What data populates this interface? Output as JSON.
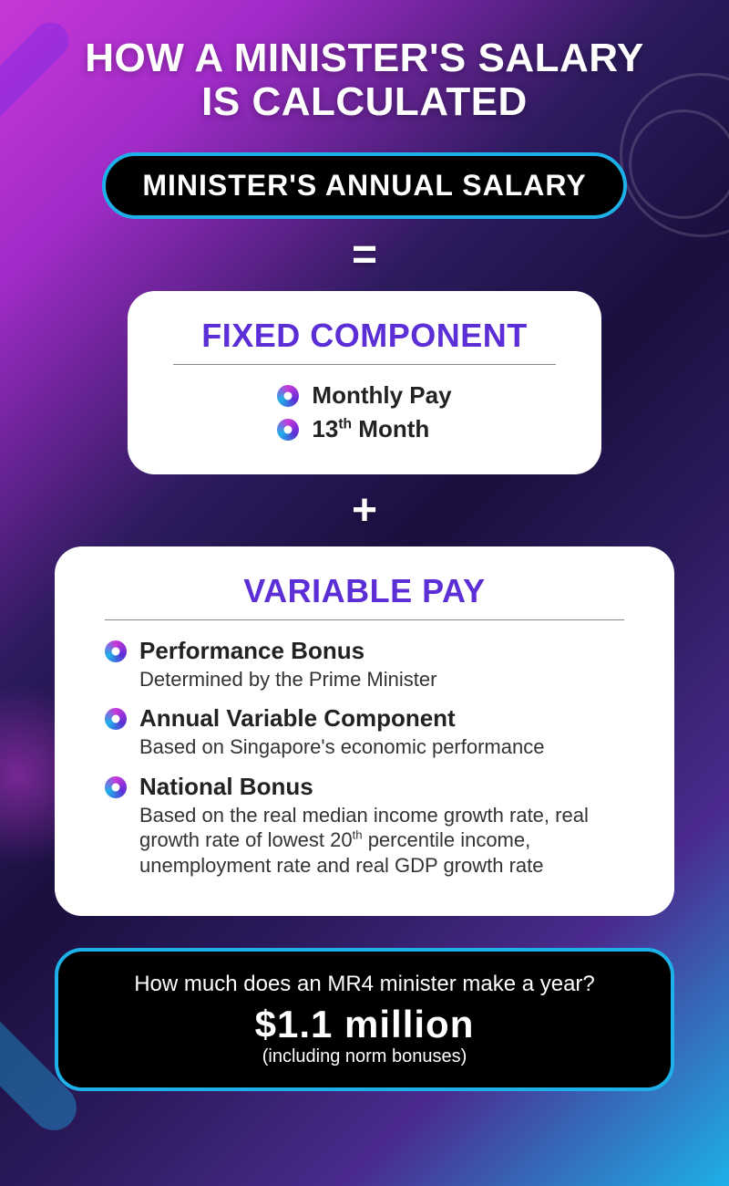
{
  "colors": {
    "accent_cyan": "#1eb0e8",
    "accent_purple": "#5b2ed6",
    "card_bg": "#ffffff",
    "pill_bg": "#000000",
    "text_light": "#ffffff",
    "text_dark": "#222222",
    "bullet_gradient": [
      "#c838d8",
      "#5b2ed6",
      "#1eb0e8"
    ]
  },
  "title": {
    "line1": "HOW A MINISTER'S SALARY",
    "line2": "IS CALCULATED",
    "fontsize": 44
  },
  "formula_header": {
    "label": "MINISTER'S ANNUAL SALARY",
    "fontsize": 32
  },
  "operators": {
    "equals": "=",
    "plus": "+"
  },
  "fixed": {
    "title": "FIXED COMPONENT",
    "title_fontsize": 36,
    "items": [
      {
        "label": "Monthly Pay"
      },
      {
        "label_html": "13<sup>th</sup> Month"
      }
    ]
  },
  "variable": {
    "title": "VARIABLE PAY",
    "title_fontsize": 36,
    "items": [
      {
        "label": "Performance Bonus",
        "desc": "Determined by the Prime Minister"
      },
      {
        "label": "Annual Variable Component",
        "desc": "Based on Singapore's economic performance"
      },
      {
        "label": "National Bonus",
        "desc_html": "Based on the real median income growth rate, real growth rate of lowest 20<sup>th</sup> percentile income, unemployment rate and real GDP growth rate"
      }
    ]
  },
  "footer": {
    "question": "How much does an MR4 minister make a year?",
    "amount": "$1.1 million",
    "note": "(including norm bonuses)"
  }
}
